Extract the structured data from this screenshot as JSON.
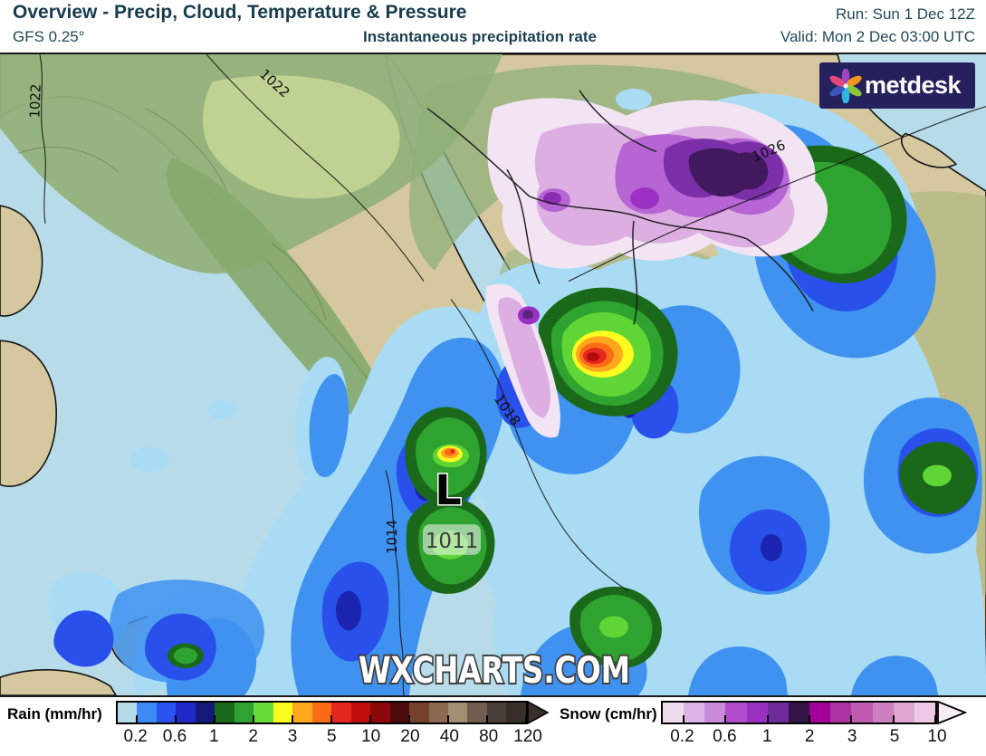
{
  "header": {
    "title": "Overview - Precip, Cloud, Temperature & Pressure",
    "model": "GFS 0.25°",
    "variable": "Instantaneous precipitation rate",
    "run": "Run: Sun 1 Dec 12Z",
    "valid": "Valid: Mon 2 Dec 03:00 UTC"
  },
  "branding": {
    "logo_text": "metdesk",
    "watermark": "WXCHARTS.COM",
    "logo_bg": "#24215c",
    "logo_petal_colors": [
      "#9d44c0",
      "#f0941e",
      "#8cc63f",
      "#2fb4e4",
      "#3c55c0",
      "#e4487e"
    ]
  },
  "map": {
    "low_marker": {
      "symbol": "L",
      "pressure": "1011"
    },
    "isobar_labels": [
      {
        "text": "1022"
      },
      {
        "text": "1022"
      },
      {
        "text": "1026"
      },
      {
        "text": "1018"
      },
      {
        "text": "1014"
      }
    ]
  },
  "legends": {
    "rain": {
      "label": "Rain (mm/hr)",
      "ticks": [
        "0.2",
        "0.6",
        "1",
        "2",
        "3",
        "5",
        "10",
        "20",
        "40",
        "80",
        "120"
      ],
      "segment_colors": [
        "#b6dbe8",
        "#3c8af5",
        "#2a52ef",
        "#2029c8",
        "#141a78",
        "#1a691a",
        "#2fa32f",
        "#68dd3a",
        "#fdfc1f",
        "#ffa81e",
        "#fb6c14",
        "#e62621",
        "#c00d0d",
        "#8c0707",
        "#4e0b0b",
        "#74412b",
        "#8d6952",
        "#a38f74",
        "#6f5d50",
        "#4a3e38",
        "#382f2b"
      ],
      "arrow_color": "#382f2b"
    },
    "snow": {
      "label": "Snow (cm/hr)",
      "ticks": [
        "0.2",
        "0.6",
        "1",
        "2",
        "3",
        "5",
        "10"
      ],
      "segment_colors": [
        "#eedcee",
        "#dcb3e4",
        "#c98ad8",
        "#b14ccc",
        "#9a30c2",
        "#6f2a9c",
        "#321546",
        "#a3009a",
        "#ad33a0",
        "#bf5cb2",
        "#cc80c0",
        "#dfa6d2",
        "#eec9e4"
      ],
      "arrow_color": "#f6ecf4"
    }
  },
  "colors": {
    "header_text": "#1c4050",
    "sea": "#b7dbe9",
    "land": "#d6c89e"
  }
}
